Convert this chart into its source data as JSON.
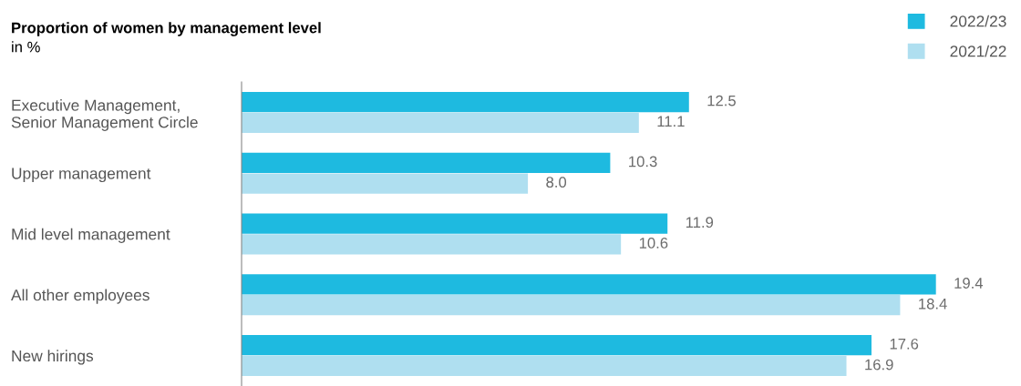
{
  "chart_data": {
    "type": "bar",
    "orientation": "horizontal",
    "title": "Proportion of women by management level",
    "subtitle": "in %",
    "categories": [
      "Executive Management,\nSenior Management Circle",
      "Upper management",
      "Mid level management",
      "All other employees",
      "New hirings"
    ],
    "series": [
      {
        "name": "2022/23",
        "color": "#1ebae0",
        "values": [
          12.5,
          10.3,
          11.9,
          19.4,
          17.6
        ],
        "value_labels": [
          "12.5",
          "10.3",
          "11.9",
          "19.4",
          "17.6"
        ]
      },
      {
        "name": "2021/22",
        "color": "#afdff0",
        "values": [
          11.1,
          8.0,
          10.6,
          18.4,
          16.9
        ],
        "value_labels": [
          "11.1",
          "8.0",
          "10.6",
          "18.4",
          "16.9"
        ]
      }
    ],
    "legend": "top right",
    "grid": false
  }
}
